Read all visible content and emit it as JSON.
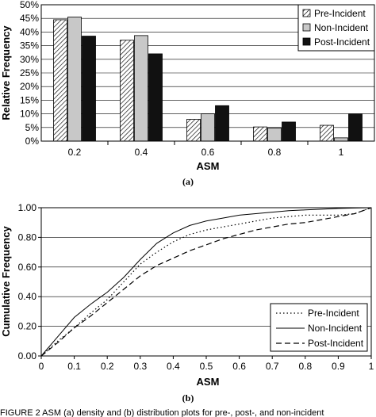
{
  "chart_data": [
    {
      "type": "bar",
      "panel_label": "(a)",
      "xlabel": "ASM",
      "ylabel": "Relative Frequency",
      "categories": [
        "0.2",
        "0.4",
        "0.6",
        "0.8",
        "1"
      ],
      "ylim": [
        0,
        50
      ],
      "yticks": [
        "0%",
        "5%",
        "10%",
        "15%",
        "20%",
        "25%",
        "30%",
        "35%",
        "40%",
        "45%",
        "50%"
      ],
      "legend_position": "top-right",
      "series": [
        {
          "name": "Pre-Incident",
          "fill": "hatched",
          "values": [
            44.5,
            37,
            8,
            5.2,
            5.8
          ]
        },
        {
          "name": "Non-Incident",
          "fill": "#c8c8c8",
          "values": [
            45.5,
            38.7,
            10,
            4.8,
            1.2
          ]
        },
        {
          "name": "Post-Incident",
          "fill": "#111111",
          "values": [
            38.5,
            32,
            13,
            7,
            10
          ]
        }
      ]
    },
    {
      "type": "line",
      "panel_label": "(b)",
      "xlabel": "ASM",
      "ylabel": "Cumulative Frequency",
      "xlim": [
        0,
        1
      ],
      "ylim": [
        0,
        1
      ],
      "xticks": [
        "0",
        "0.1",
        "0.2",
        "0.3",
        "0.4",
        "0.5",
        "0.6",
        "0.7",
        "0.8",
        "0.9",
        "1"
      ],
      "yticks": [
        "0.00",
        "0.20",
        "0.40",
        "0.60",
        "0.80",
        "1.00"
      ],
      "legend_position": "bottom-right",
      "series": [
        {
          "name": "Pre-Incident",
          "style": "dotted",
          "x": [
            0,
            0.05,
            0.1,
            0.15,
            0.2,
            0.25,
            0.3,
            0.35,
            0.4,
            0.45,
            0.5,
            0.55,
            0.6,
            0.65,
            0.7,
            0.75,
            0.8,
            0.85,
            0.9,
            0.95,
            1
          ],
          "y": [
            0,
            0.1,
            0.19,
            0.29,
            0.38,
            0.5,
            0.62,
            0.7,
            0.77,
            0.82,
            0.85,
            0.87,
            0.89,
            0.91,
            0.93,
            0.94,
            0.95,
            0.95,
            0.95,
            0.96,
            1
          ]
        },
        {
          "name": "Non-Incident",
          "style": "solid",
          "x": [
            0,
            0.05,
            0.1,
            0.15,
            0.2,
            0.25,
            0.3,
            0.35,
            0.4,
            0.45,
            0.5,
            0.55,
            0.6,
            0.65,
            0.7,
            0.75,
            0.8,
            0.85,
            0.9,
            0.95,
            1
          ],
          "y": [
            0,
            0.13,
            0.26,
            0.35,
            0.43,
            0.53,
            0.65,
            0.76,
            0.83,
            0.88,
            0.91,
            0.93,
            0.95,
            0.96,
            0.97,
            0.98,
            0.985,
            0.99,
            0.995,
            0.998,
            1
          ]
        },
        {
          "name": "Post-Incident",
          "style": "dashed",
          "x": [
            0,
            0.05,
            0.1,
            0.15,
            0.2,
            0.25,
            0.3,
            0.35,
            0.4,
            0.45,
            0.5,
            0.55,
            0.6,
            0.65,
            0.7,
            0.75,
            0.8,
            0.85,
            0.9,
            0.95,
            1
          ],
          "y": [
            0,
            0.09,
            0.19,
            0.27,
            0.36,
            0.45,
            0.54,
            0.61,
            0.66,
            0.71,
            0.75,
            0.79,
            0.82,
            0.85,
            0.87,
            0.89,
            0.9,
            0.92,
            0.94,
            0.96,
            1
          ]
        }
      ]
    }
  ],
  "caption": "FIGURE 2  ASM (a) density and (b) distribution plots for pre-, post-, and non-incident"
}
